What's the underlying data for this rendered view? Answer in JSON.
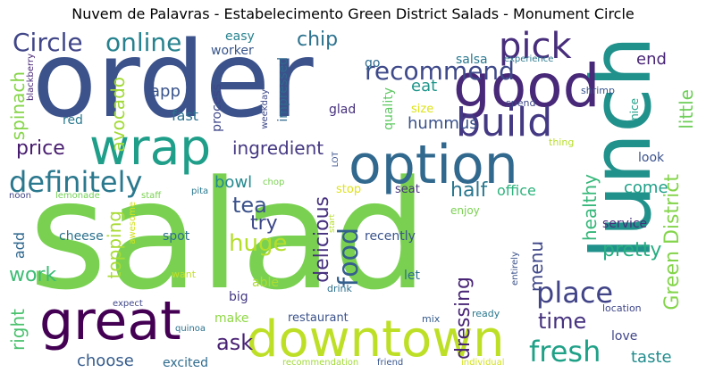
{
  "title": "Nuvem de Palavras - Estabelecimento Green District Salads - Monument Circle",
  "words": [
    {
      "text": "salad",
      "color": "#7ad151"
    },
    {
      "text": "order",
      "color": "#3b528b"
    },
    {
      "text": "lunch",
      "color": "#21918c"
    },
    {
      "text": "good",
      "color": "#482878"
    },
    {
      "text": "wrap",
      "color": "#1f9e89"
    },
    {
      "text": "option",
      "color": "#31688e"
    },
    {
      "text": "downtown",
      "color": "#bddf26"
    },
    {
      "text": "great",
      "color": "#440154"
    },
    {
      "text": "build",
      "color": "#443983"
    },
    {
      "text": "definitely",
      "color": "#2a788e"
    },
    {
      "text": "recommend",
      "color": "#3e4989"
    },
    {
      "text": "pick",
      "color": "#472d7b"
    },
    {
      "text": "online",
      "color": "#26828e"
    },
    {
      "text": "Circle",
      "color": "#404688"
    },
    {
      "text": "chip",
      "color": "#2c728e"
    },
    {
      "text": "place",
      "color": "#414487"
    },
    {
      "text": "fresh",
      "color": "#1fa187"
    },
    {
      "text": "time",
      "color": "#46327e"
    },
    {
      "text": "food",
      "color": "#355f8d"
    },
    {
      "text": "huge",
      "color": "#b5de2b"
    },
    {
      "text": "Green District",
      "color": "#84d44b"
    },
    {
      "text": "little",
      "color": "#6ece58"
    },
    {
      "text": "tea",
      "color": "#3b528b"
    },
    {
      "text": "try",
      "color": "#3e4989"
    },
    {
      "text": "ask",
      "color": "#482173"
    },
    {
      "text": "delicious",
      "color": "#46307e"
    },
    {
      "text": "ingredient",
      "color": "#453882"
    },
    {
      "text": "price",
      "color": "#481d6f"
    },
    {
      "text": "half",
      "color": "#2a778e"
    },
    {
      "text": "dressing",
      "color": "#482576"
    },
    {
      "text": "pretty",
      "color": "#26ad81"
    },
    {
      "text": "healthy",
      "color": "#35b779"
    },
    {
      "text": "menu",
      "color": "#3f4788"
    },
    {
      "text": "topping",
      "color": "#a8db34"
    },
    {
      "text": "avocado",
      "color": "#a2da37"
    },
    {
      "text": "spinach",
      "color": "#86d549"
    },
    {
      "text": "work",
      "color": "#3dbc74"
    },
    {
      "text": "right",
      "color": "#4ac16d"
    },
    {
      "text": "add",
      "color": "#31688e"
    },
    {
      "text": "choose",
      "color": "#365c8d"
    },
    {
      "text": "taste",
      "color": "#228c8d"
    },
    {
      "text": "app",
      "color": "#3a548c"
    },
    {
      "text": "fast",
      "color": "#2c728e"
    },
    {
      "text": "bowl",
      "color": "#23898e"
    },
    {
      "text": "come",
      "color": "#1fa088"
    },
    {
      "text": "office",
      "color": "#2db27d"
    },
    {
      "text": "hummus",
      "color": "#3b528b"
    },
    {
      "text": "eat",
      "color": "#1f968b"
    },
    {
      "text": "end",
      "color": "#482475"
    },
    {
      "text": "look",
      "color": "#3b528b"
    },
    {
      "text": "service",
      "color": "#472d7b"
    },
    {
      "text": "love",
      "color": "#404688"
    },
    {
      "text": "salsa",
      "color": "#2a788e"
    },
    {
      "text": "go",
      "color": "#2f6c8e"
    },
    {
      "text": "quality",
      "color": "#5ec962"
    },
    {
      "text": "glad",
      "color": "#46307e"
    },
    {
      "text": "impressed",
      "color": "#31688e"
    },
    {
      "text": "process",
      "color": "#3f4788"
    },
    {
      "text": "easy",
      "color": "#26828e"
    },
    {
      "text": "worker",
      "color": "#39568c"
    },
    {
      "text": "red",
      "color": "#2a788e"
    },
    {
      "text": "blackberry",
      "color": "#482677"
    },
    {
      "text": "cheese",
      "color": "#2c728e"
    },
    {
      "text": "spot",
      "color": "#2d708e"
    },
    {
      "text": "excited",
      "color": "#2f6c8e"
    },
    {
      "text": "make",
      "color": "#8fd744"
    },
    {
      "text": "restaurant",
      "color": "#3b528b"
    },
    {
      "text": "big",
      "color": "#443983"
    },
    {
      "text": "able",
      "color": "#addc30"
    },
    {
      "text": "recently",
      "color": "#3a538b"
    },
    {
      "text": "let",
      "color": "#2d708e"
    },
    {
      "text": "seat",
      "color": "#46337e"
    },
    {
      "text": "stop",
      "color": "#dfe318"
    },
    {
      "text": "enjoy",
      "color": "#7ad151"
    },
    {
      "text": "size",
      "color": "#dde318"
    },
    {
      "text": "spend",
      "color": "#3f4788"
    },
    {
      "text": "experience",
      "color": "#2a788e"
    },
    {
      "text": "shrimp",
      "color": "#39558c"
    },
    {
      "text": "nice",
      "color": "#1fa088"
    },
    {
      "text": "thing",
      "color": "#b8de29"
    },
    {
      "text": "weekday",
      "color": "#3e4989"
    },
    {
      "text": "noon",
      "color": "#414487"
    },
    {
      "text": "lemonade",
      "color": "#73d056"
    },
    {
      "text": "staff",
      "color": "#7ad151"
    },
    {
      "text": "pita",
      "color": "#2a788e"
    },
    {
      "text": "chop",
      "color": "#7ad151"
    },
    {
      "text": "awesome",
      "color": "#d2e21b"
    },
    {
      "text": "LOT",
      "color": "#3b528b"
    },
    {
      "text": "start",
      "color": "#b5de2b"
    },
    {
      "text": "want",
      "color": "#c2df23"
    },
    {
      "text": "expect",
      "color": "#3f4788"
    },
    {
      "text": "quinoa",
      "color": "#2c728e"
    },
    {
      "text": "drink",
      "color": "#2d708e"
    },
    {
      "text": "mix",
      "color": "#365c8d"
    },
    {
      "text": "ready",
      "color": "#2a788e"
    },
    {
      "text": "entirely",
      "color": "#3b528b"
    },
    {
      "text": "location",
      "color": "#3f4788"
    },
    {
      "text": "recommendation",
      "color": "#a2da37"
    },
    {
      "text": "friend",
      "color": "#39568c"
    },
    {
      "text": "individual",
      "color": "#d2e21b"
    }
  ]
}
